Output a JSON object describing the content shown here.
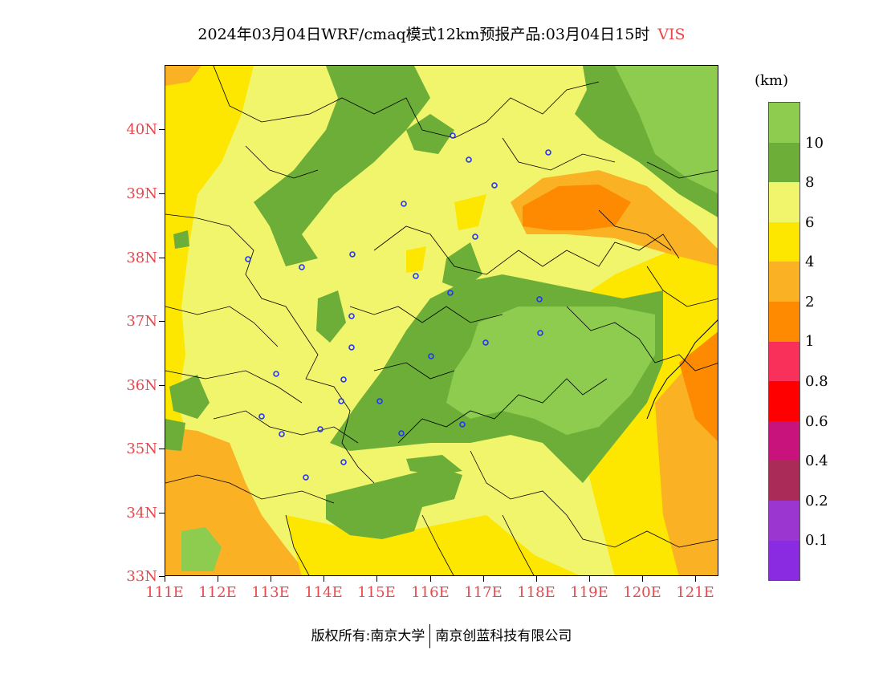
{
  "title": {
    "main": "2024年03月04日WRF/cmaq模式12km预报产品:03月04日15时",
    "variable": "VIS"
  },
  "lat_labels": [
    "40N",
    "39N",
    "38N",
    "37N",
    "36N",
    "35N",
    "34N",
    "33N"
  ],
  "lon_labels": [
    "111E",
    "112E",
    "113E",
    "114E",
    "115E",
    "116E",
    "117E",
    "118E",
    "119E",
    "120E",
    "121E"
  ],
  "legend": {
    "unit": "(km)",
    "levels": [
      "10",
      "8",
      "6",
      "4",
      "2",
      "1",
      "0.8",
      "0.6",
      "0.4",
      "0.2",
      "0.1"
    ],
    "colors": [
      "#8dcc4f",
      "#6cae38",
      "#f1f56c",
      "#fde600",
      "#fbb124",
      "#fe8a02",
      "#f9305a",
      "#fe0000",
      "#c8127c",
      "#aa2a58",
      "#9b36d0",
      "#8a2be2"
    ]
  },
  "footer": {
    "copyright": "版权所有:南京大学",
    "company": "南京创蓝科技有限公司"
  }
}
